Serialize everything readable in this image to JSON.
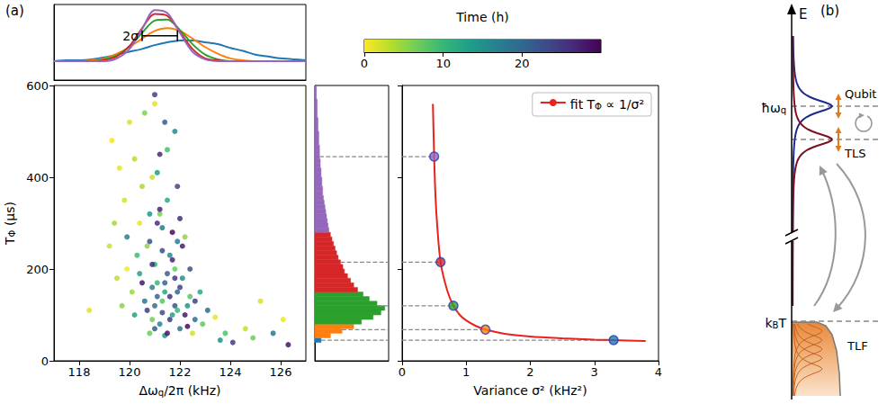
{
  "label": "(a)",
  "chart_data": [
    {
      "type": "line",
      "x": [
        117,
        117.5,
        118,
        118.5,
        119,
        119.5,
        120,
        120.5,
        121,
        121.5,
        122,
        122.5,
        123,
        123.5,
        124,
        124.5,
        125,
        125.5,
        126,
        126.5,
        127
      ],
      "series": [
        {
          "color": "#1f77b4",
          "values": [
            0,
            0.01,
            0.01,
            0.02,
            0.04,
            0.07,
            0.1,
            0.13,
            0.17,
            0.2,
            0.22,
            0.22,
            0.2,
            0.18,
            0.14,
            0.11,
            0.07,
            0.05,
            0.03,
            0.02,
            0.01
          ]
        },
        {
          "color": "#ff7f0e",
          "values": [
            0,
            0,
            0,
            0.01,
            0.03,
            0.08,
            0.15,
            0.24,
            0.32,
            0.35,
            0.32,
            0.24,
            0.15,
            0.08,
            0.03,
            0.01,
            0,
            0,
            0,
            0,
            0
          ]
        },
        {
          "color": "#2ca02c",
          "values": [
            0,
            0,
            0,
            0,
            0.02,
            0.06,
            0.16,
            0.3,
            0.43,
            0.44,
            0.33,
            0.18,
            0.07,
            0.02,
            0,
            0,
            0,
            0,
            0,
            0,
            0
          ]
        },
        {
          "color": "#d62728",
          "values": [
            0,
            0,
            0,
            0,
            0.01,
            0.05,
            0.16,
            0.35,
            0.5,
            0.48,
            0.31,
            0.13,
            0.03,
            0.01,
            0,
            0,
            0,
            0,
            0,
            0,
            0
          ]
        },
        {
          "color": "#9467bd",
          "values": [
            0,
            0,
            0,
            0,
            0,
            0.03,
            0.13,
            0.34,
            0.54,
            0.51,
            0.3,
            0.1,
            0.02,
            0,
            0,
            0,
            0,
            0,
            0,
            0,
            0
          ]
        }
      ],
      "xlim": [
        117,
        127
      ],
      "ylim": [
        -0.2,
        0.6
      ],
      "tick_labels": false,
      "annotations": [
        {
          "text": "2σ",
          "x": [
            120.5,
            121.9
          ],
          "y": 0.27
        }
      ]
    },
    {
      "type": "scatter",
      "x_label": [
        {
          "text": "Δω"
        },
        {
          "text": "q",
          "sub": true
        },
        {
          "text": "/2π (kHz)"
        }
      ],
      "y_label": [
        {
          "text": "T"
        },
        {
          "text": "Φ",
          "sub": true
        },
        {
          "text": " (μs)"
        }
      ],
      "x": [
        119.3,
        119.6,
        120.0,
        119.8,
        120.4,
        119.2,
        121.0,
        119.5,
        120.9,
        125.2,
        126.1,
        124.6,
        118.4,
        120.2,
        119.9,
        122.5,
        123.4,
        120.5,
        120.7,
        121.2,
        120.1,
        121.8,
        122.4,
        119.7,
        120.9,
        121.5,
        122.9,
        123.8,
        120.3,
        121.1,
        119.4,
        120.6,
        121.9,
        122.2,
        124.9,
        120.8,
        121.3,
        121.0,
        121.4,
        121.7,
        120.8,
        122.1,
        121.2,
        121.9,
        120.6,
        122.6,
        121.5,
        120.4,
        121.1,
        122.3,
        121.6,
        120.9,
        121.3,
        122.0,
        123.1,
        120.2,
        121.8,
        122.8,
        121.4,
        119.9,
        121.0,
        123.6,
        125.7,
        121.1,
        121.5,
        121.8,
        121.3,
        122.0,
        121.6,
        120.9,
        121.2,
        122.2,
        121.7,
        121.4,
        121.0,
        122.4,
        121.9,
        120.7,
        121.6,
        121.2,
        122.1,
        121.5,
        120.8,
        121.3,
        122.6,
        121.8,
        121.1,
        121.7,
        120.5,
        122.3,
        121.4,
        124.1,
        126.3,
        121.9,
        121.0,
        122.0
      ],
      "values": [
        480,
        420,
        520,
        350,
        300,
        250,
        560,
        180,
        400,
        130,
        90,
        70,
        110,
        440,
        200,
        60,
        95,
        380,
        250,
        320,
        150,
        200,
        140,
        120,
        90,
        460,
        80,
        60,
        230,
        170,
        300,
        540,
        110,
        270,
        50,
        60,
        130,
        210,
        150,
        100,
        320,
        180,
        80,
        260,
        130,
        90,
        350,
        190,
        410,
        120,
        230,
        160,
        290,
        70,
        110,
        100,
        500,
        150,
        55,
        270,
        120,
        45,
        60,
        140,
        190,
        120,
        240,
        160,
        90,
        210,
        330,
        100,
        280,
        170,
        70,
        200,
        380,
        110,
        140,
        450,
        250,
        60,
        260,
        105,
        130,
        180,
        300,
        220,
        170,
        75,
        520,
        40,
        35,
        150,
        580,
        310
      ],
      "time": [
        0.5,
        1,
        1.5,
        2,
        0.8,
        2.5,
        1.2,
        3,
        2.2,
        1.8,
        0.6,
        2.8,
        1.4,
        3.2,
        0.3,
        2,
        1,
        4,
        5,
        6,
        4.5,
        7,
        8,
        5.5,
        6.5,
        9,
        7.5,
        8.5,
        9.5,
        10,
        4.2,
        6,
        9.8,
        5,
        6.8,
        7,
        8,
        11,
        12,
        13,
        14,
        15,
        16,
        17,
        18,
        19,
        11.5,
        12.5,
        13.5,
        14.5,
        15.5,
        16.5,
        17.5,
        18.5,
        19.5,
        13,
        16,
        12,
        14,
        17,
        19,
        15,
        18,
        20,
        21,
        22,
        23,
        24,
        25,
        26,
        27,
        28,
        29,
        20.5,
        21.5,
        22.5,
        23.5,
        24.5,
        25.5,
        26.5,
        27.5,
        28.5,
        22,
        23,
        24,
        25,
        26,
        27,
        28,
        29,
        21,
        25,
        28,
        20,
        24,
        26
      ],
      "xlim": [
        117,
        127
      ],
      "xticks": [
        118,
        120,
        122,
        124,
        126
      ],
      "ylim": [
        0,
        600
      ],
      "yticks": [
        0,
        200,
        400,
        600
      ],
      "grid": false,
      "colorbar": {
        "label": "Time (h)",
        "range": [
          0,
          30
        ],
        "ticks": [
          0,
          10,
          20
        ]
      }
    },
    {
      "type": "histogram",
      "orientation": "horizontal",
      "bins": [
        40,
        50,
        60,
        70,
        80,
        90,
        100,
        110,
        120,
        130,
        140,
        150,
        160,
        170,
        180,
        190,
        200,
        210,
        220,
        230,
        240,
        250,
        260,
        270,
        280,
        290,
        300,
        310,
        320,
        330,
        340,
        350,
        360,
        370,
        380,
        390,
        400,
        410,
        420,
        430,
        440,
        450,
        460,
        470,
        480,
        490,
        500,
        510,
        520,
        530,
        540,
        550,
        560,
        570,
        580,
        590,
        600
      ],
      "counts": [
        8,
        20,
        35,
        50,
        60,
        75,
        85,
        90,
        80,
        70,
        62,
        55,
        50,
        46,
        42,
        38,
        36,
        33,
        30,
        28,
        26,
        24,
        22,
        20,
        18,
        17,
        16,
        15,
        14,
        13,
        12,
        11,
        10,
        10,
        9,
        9,
        8,
        8,
        7,
        7,
        6,
        6,
        6,
        5,
        5,
        5,
        4,
        4,
        4,
        3,
        3,
        3,
        3,
        2,
        2,
        2
      ],
      "colors": [
        "#1f77b4",
        "#ff7f0e",
        "#ff7f0e",
        "#ff7f0e",
        "#2ca02c",
        "#2ca02c",
        "#2ca02c",
        "#2ca02c",
        "#2ca02c",
        "#2ca02c",
        "#2ca02c",
        "#d62728",
        "#d62728",
        "#d62728",
        "#d62728",
        "#d62728",
        "#d62728",
        "#d62728",
        "#d62728",
        "#d62728",
        "#d62728",
        "#d62728",
        "#d62728",
        "#d62728",
        "#9467bd",
        "#9467bd",
        "#9467bd",
        "#9467bd",
        "#9467bd",
        "#9467bd",
        "#9467bd",
        "#9467bd",
        "#9467bd",
        "#9467bd",
        "#9467bd",
        "#9467bd",
        "#9467bd",
        "#9467bd",
        "#9467bd",
        "#9467bd",
        "#9467bd",
        "#9467bd",
        "#9467bd",
        "#9467bd",
        "#9467bd",
        "#9467bd",
        "#9467bd",
        "#9467bd",
        "#9467bd",
        "#9467bd",
        "#9467bd",
        "#9467bd",
        "#9467bd",
        "#9467bd",
        "#9467bd",
        "#9467bd"
      ],
      "xlim": [
        0,
        95
      ],
      "ylim": [
        0,
        600
      ],
      "tick_labels": false
    },
    {
      "type": "line",
      "x_label": "Variance σ² (kHz²)",
      "series": [
        {
          "name": [
            {
              "text": "fit T"
            },
            {
              "text": "Φ",
              "sub": true
            },
            {
              "text": " ∝ 1/σ²"
            }
          ],
          "type": "line",
          "color": "#e8231b",
          "x": [
            0.48,
            0.5,
            0.52,
            0.55,
            0.6,
            0.7,
            0.8,
            0.9,
            1.0,
            1.15,
            1.3,
            1.6,
            2.0,
            2.5,
            3.0,
            3.3,
            3.8
          ],
          "values": [
            560,
            445,
            360,
            290,
            215,
            155,
            120,
            100,
            88,
            76,
            68,
            59,
            53,
            49,
            46,
            45,
            43
          ]
        },
        {
          "type": "scatter",
          "marker": "circle",
          "x": [
            0.5,
            0.6,
            0.8,
            1.3,
            3.3
          ],
          "values": [
            445,
            215,
            120,
            68,
            45
          ],
          "colors": [
            "#9467bd",
            "#d62728",
            "#2ca02c",
            "#ff7f0e",
            "#1f77b4"
          ]
        }
      ],
      "xlim": [
        0,
        4
      ],
      "xticks": [
        0,
        1,
        2,
        3,
        4
      ],
      "ylim": [
        0,
        600
      ],
      "yticks": [
        0,
        200,
        400,
        600
      ],
      "tick_labels": "x",
      "grid": false,
      "legend": "upper right"
    }
  ],
  "diagram": {
    "label": "(b)",
    "axis": "E",
    "qubit_energy": [
      {
        "text": "ħω"
      },
      {
        "text": "q",
        "sub": true
      }
    ],
    "qubit": "Qubit",
    "tls": "TLS",
    "thermal_energy": [
      {
        "text": "k"
      },
      {
        "text": "B",
        "sub": true
      },
      {
        "text": "T"
      }
    ],
    "tlf": "TLF"
  }
}
